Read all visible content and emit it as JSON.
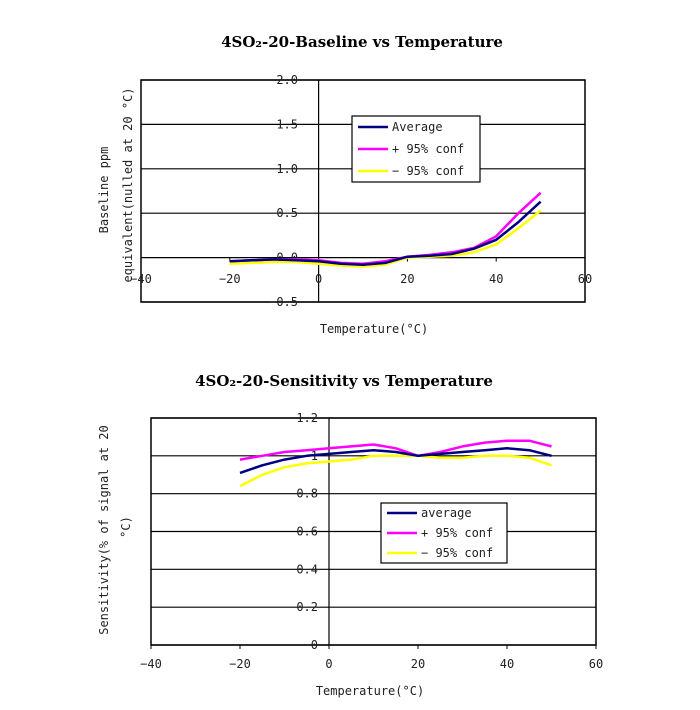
{
  "chart_data": [
    {
      "type": "line",
      "title": "4SO₂-20-Baseline vs Temperature",
      "xlabel": "Temperature(°C)",
      "ylabel": [
        "Baseline ppm",
        "equivalent(nulled at 20 °C)"
      ],
      "xlim": [
        -40,
        60
      ],
      "ylim": [
        -0.5,
        2.0
      ],
      "xticks": [
        -40,
        -20,
        0,
        20,
        40,
        60
      ],
      "xtick_labels": [
        "-40",
        "-20",
        "0",
        "20",
        "40",
        "60"
      ],
      "yticks": [
        -0.5,
        0.0,
        0.5,
        1.0,
        1.5,
        2.0
      ],
      "ytick_labels": [
        "-0.5",
        "0.0",
        "0.5",
        "1.0",
        "1.5",
        "2.0"
      ],
      "grid": true,
      "legend": "top-right",
      "x": [
        -20,
        -15,
        -10,
        -5,
        0,
        5,
        10,
        15,
        20,
        25,
        30,
        35,
        40,
        45,
        50
      ],
      "series": [
        {
          "name": "Average",
          "color": "#000080",
          "values": [
            -0.04,
            -0.03,
            -0.02,
            -0.03,
            -0.04,
            -0.07,
            -0.08,
            -0.06,
            0.01,
            0.02,
            0.04,
            0.1,
            0.2,
            0.4,
            0.63
          ]
        },
        {
          "name": "+ 95% conf",
          "color": "#ff00ff",
          "values": [
            -0.04,
            -0.03,
            -0.02,
            -0.02,
            -0.03,
            -0.06,
            -0.07,
            -0.04,
            0.01,
            0.03,
            0.06,
            0.11,
            0.24,
            0.5,
            0.73
          ]
        },
        {
          "name": "- 95% conf",
          "color": "#ffff00",
          "values": [
            -0.07,
            -0.06,
            -0.05,
            -0.05,
            -0.07,
            -0.09,
            -0.1,
            -0.08,
            0.0,
            0.01,
            0.02,
            0.06,
            0.15,
            0.33,
            0.53
          ]
        }
      ]
    },
    {
      "type": "line",
      "title": "4SO₂-20-Sensitivity vs Temperature",
      "xlabel": "Temperature(°C)",
      "ylabel": [
        "Sensitivity(% of signal at 20",
        "°C)"
      ],
      "xlim": [
        -40,
        60
      ],
      "ylim": [
        0,
        1.2
      ],
      "xticks": [
        -40,
        -20,
        0,
        20,
        40,
        60
      ],
      "xtick_labels": [
        "-40",
        "-20",
        "0",
        "20",
        "40",
        "60"
      ],
      "yticks": [
        0,
        0.2,
        0.4,
        0.6,
        0.8,
        1,
        1.2
      ],
      "ytick_labels": [
        "0",
        "0.2",
        "0.4",
        "0.6",
        "0.8",
        "1",
        "1.2"
      ],
      "grid": true,
      "legend": "center-right",
      "x": [
        -20,
        -15,
        -10,
        -5,
        0,
        5,
        10,
        15,
        20,
        25,
        30,
        35,
        40,
        45,
        50
      ],
      "series": [
        {
          "name": "average",
          "color": "#000080",
          "values": [
            0.91,
            0.95,
            0.98,
            1.0,
            1.01,
            1.02,
            1.03,
            1.02,
            1.0,
            1.01,
            1.02,
            1.03,
            1.04,
            1.03,
            1.0
          ]
        },
        {
          "name": "+ 95% conf",
          "color": "#ff00ff",
          "values": [
            0.98,
            1.0,
            1.02,
            1.03,
            1.04,
            1.05,
            1.06,
            1.04,
            1.0,
            1.02,
            1.05,
            1.07,
            1.08,
            1.08,
            1.05
          ]
        },
        {
          "name": "- 95% conf",
          "color": "#ffff00",
          "values": [
            0.84,
            0.9,
            0.94,
            0.96,
            0.97,
            0.98,
            1.0,
            1.0,
            1.0,
            0.99,
            0.99,
            1.0,
            1.0,
            0.99,
            0.95
          ]
        }
      ]
    }
  ]
}
